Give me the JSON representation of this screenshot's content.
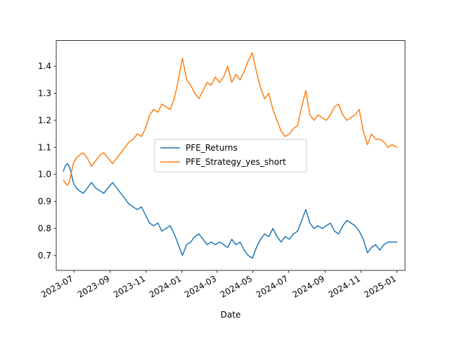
{
  "chart_data": {
    "type": "line",
    "title": "",
    "xlabel": "Date",
    "ylabel": "",
    "xlim": [
      "2023-06-01",
      "2025-01-15"
    ],
    "ylim": [
      0.645,
      1.495
    ],
    "x_ticks": [
      "2023-07",
      "2023-09",
      "2023-11",
      "2024-01",
      "2024-03",
      "2024-05",
      "2024-07",
      "2024-09",
      "2024-11",
      "2025-01"
    ],
    "y_ticks": [
      0.7,
      0.8,
      0.9,
      1.0,
      1.1,
      1.2,
      1.3,
      1.4
    ],
    "grid": false,
    "legend": "center",
    "series": [
      {
        "name": "PFE_Returns",
        "color": "#1f77b4",
        "points": [
          [
            "2023-06-13",
            1.01
          ],
          [
            "2023-06-16",
            1.03
          ],
          [
            "2023-06-20",
            1.04
          ],
          [
            "2023-06-23",
            1.03
          ],
          [
            "2023-06-27",
            1.0
          ],
          [
            "2023-06-30",
            0.97
          ],
          [
            "2023-07-05",
            0.95
          ],
          [
            "2023-07-10",
            0.94
          ],
          [
            "2023-07-17",
            0.93
          ],
          [
            "2023-07-24",
            0.95
          ],
          [
            "2023-07-31",
            0.97
          ],
          [
            "2023-08-07",
            0.95
          ],
          [
            "2023-08-14",
            0.94
          ],
          [
            "2023-08-21",
            0.93
          ],
          [
            "2023-08-28",
            0.95
          ],
          [
            "2023-09-05",
            0.97
          ],
          [
            "2023-09-12",
            0.95
          ],
          [
            "2023-09-19",
            0.93
          ],
          [
            "2023-09-26",
            0.91
          ],
          [
            "2023-10-03",
            0.89
          ],
          [
            "2023-10-10",
            0.88
          ],
          [
            "2023-10-17",
            0.87
          ],
          [
            "2023-10-24",
            0.88
          ],
          [
            "2023-10-31",
            0.85
          ],
          [
            "2023-11-07",
            0.82
          ],
          [
            "2023-11-14",
            0.81
          ],
          [
            "2023-11-21",
            0.82
          ],
          [
            "2023-11-28",
            0.79
          ],
          [
            "2023-12-05",
            0.8
          ],
          [
            "2023-12-12",
            0.81
          ],
          [
            "2023-12-19",
            0.78
          ],
          [
            "2023-12-26",
            0.74
          ],
          [
            "2024-01-02",
            0.7
          ],
          [
            "2024-01-09",
            0.74
          ],
          [
            "2024-01-16",
            0.75
          ],
          [
            "2024-01-23",
            0.77
          ],
          [
            "2024-01-30",
            0.78
          ],
          [
            "2024-02-06",
            0.76
          ],
          [
            "2024-02-13",
            0.74
          ],
          [
            "2024-02-20",
            0.75
          ],
          [
            "2024-02-27",
            0.74
          ],
          [
            "2024-03-05",
            0.75
          ],
          [
            "2024-03-12",
            0.74
          ],
          [
            "2024-03-19",
            0.73
          ],
          [
            "2024-03-26",
            0.76
          ],
          [
            "2024-04-02",
            0.74
          ],
          [
            "2024-04-09",
            0.75
          ],
          [
            "2024-04-16",
            0.72
          ],
          [
            "2024-04-23",
            0.7
          ],
          [
            "2024-04-30",
            0.69
          ],
          [
            "2024-05-07",
            0.73
          ],
          [
            "2024-05-14",
            0.76
          ],
          [
            "2024-05-21",
            0.78
          ],
          [
            "2024-05-28",
            0.77
          ],
          [
            "2024-06-04",
            0.8
          ],
          [
            "2024-06-11",
            0.77
          ],
          [
            "2024-06-18",
            0.75
          ],
          [
            "2024-06-25",
            0.77
          ],
          [
            "2024-07-02",
            0.76
          ],
          [
            "2024-07-09",
            0.78
          ],
          [
            "2024-07-16",
            0.79
          ],
          [
            "2024-07-23",
            0.83
          ],
          [
            "2024-07-30",
            0.87
          ],
          [
            "2024-08-06",
            0.82
          ],
          [
            "2024-08-13",
            0.8
          ],
          [
            "2024-08-20",
            0.81
          ],
          [
            "2024-08-27",
            0.8
          ],
          [
            "2024-09-03",
            0.81
          ],
          [
            "2024-09-10",
            0.82
          ],
          [
            "2024-09-17",
            0.79
          ],
          [
            "2024-09-24",
            0.78
          ],
          [
            "2024-10-01",
            0.81
          ],
          [
            "2024-10-08",
            0.83
          ],
          [
            "2024-10-15",
            0.82
          ],
          [
            "2024-10-22",
            0.81
          ],
          [
            "2024-10-29",
            0.79
          ],
          [
            "2024-11-05",
            0.76
          ],
          [
            "2024-11-12",
            0.71
          ],
          [
            "2024-11-19",
            0.73
          ],
          [
            "2024-11-26",
            0.74
          ],
          [
            "2024-12-03",
            0.72
          ],
          [
            "2024-12-10",
            0.74
          ],
          [
            "2024-12-17",
            0.75
          ],
          [
            "2024-12-24",
            0.75
          ],
          [
            "2025-01-02",
            0.75
          ]
        ]
      },
      {
        "name": "PFE_Strategy_yes_short",
        "color": "#ff7f0e",
        "points": [
          [
            "2023-06-13",
            0.98
          ],
          [
            "2023-06-16",
            0.97
          ],
          [
            "2023-06-20",
            0.96
          ],
          [
            "2023-06-23",
            0.97
          ],
          [
            "2023-06-27",
            1.01
          ],
          [
            "2023-06-30",
            1.04
          ],
          [
            "2023-07-05",
            1.06
          ],
          [
            "2023-07-10",
            1.07
          ],
          [
            "2023-07-17",
            1.08
          ],
          [
            "2023-07-24",
            1.06
          ],
          [
            "2023-07-31",
            1.03
          ],
          [
            "2023-08-07",
            1.05
          ],
          [
            "2023-08-14",
            1.07
          ],
          [
            "2023-08-21",
            1.08
          ],
          [
            "2023-08-28",
            1.06
          ],
          [
            "2023-09-05",
            1.04
          ],
          [
            "2023-09-12",
            1.06
          ],
          [
            "2023-09-19",
            1.08
          ],
          [
            "2023-09-26",
            1.1
          ],
          [
            "2023-10-03",
            1.12
          ],
          [
            "2023-10-10",
            1.13
          ],
          [
            "2023-10-17",
            1.15
          ],
          [
            "2023-10-24",
            1.14
          ],
          [
            "2023-10-31",
            1.17
          ],
          [
            "2023-11-07",
            1.22
          ],
          [
            "2023-11-14",
            1.24
          ],
          [
            "2023-11-21",
            1.23
          ],
          [
            "2023-11-28",
            1.26
          ],
          [
            "2023-12-05",
            1.25
          ],
          [
            "2023-12-12",
            1.24
          ],
          [
            "2023-12-19",
            1.28
          ],
          [
            "2023-12-26",
            1.35
          ],
          [
            "2024-01-02",
            1.43
          ],
          [
            "2024-01-09",
            1.35
          ],
          [
            "2024-01-16",
            1.33
          ],
          [
            "2024-01-23",
            1.3
          ],
          [
            "2024-01-30",
            1.28
          ],
          [
            "2024-02-06",
            1.31
          ],
          [
            "2024-02-13",
            1.34
          ],
          [
            "2024-02-20",
            1.33
          ],
          [
            "2024-02-27",
            1.36
          ],
          [
            "2024-03-05",
            1.34
          ],
          [
            "2024-03-12",
            1.36
          ],
          [
            "2024-03-19",
            1.4
          ],
          [
            "2024-03-26",
            1.34
          ],
          [
            "2024-04-02",
            1.37
          ],
          [
            "2024-04-09",
            1.35
          ],
          [
            "2024-04-16",
            1.38
          ],
          [
            "2024-04-23",
            1.42
          ],
          [
            "2024-04-30",
            1.45
          ],
          [
            "2024-05-07",
            1.38
          ],
          [
            "2024-05-14",
            1.32
          ],
          [
            "2024-05-21",
            1.28
          ],
          [
            "2024-05-28",
            1.3
          ],
          [
            "2024-06-04",
            1.24
          ],
          [
            "2024-06-11",
            1.2
          ],
          [
            "2024-06-18",
            1.16
          ],
          [
            "2024-06-25",
            1.14
          ],
          [
            "2024-07-02",
            1.15
          ],
          [
            "2024-07-09",
            1.17
          ],
          [
            "2024-07-16",
            1.18
          ],
          [
            "2024-07-23",
            1.25
          ],
          [
            "2024-07-30",
            1.31
          ],
          [
            "2024-08-06",
            1.22
          ],
          [
            "2024-08-13",
            1.2
          ],
          [
            "2024-08-20",
            1.22
          ],
          [
            "2024-08-27",
            1.21
          ],
          [
            "2024-09-03",
            1.2
          ],
          [
            "2024-09-10",
            1.22
          ],
          [
            "2024-09-17",
            1.25
          ],
          [
            "2024-09-24",
            1.26
          ],
          [
            "2024-10-01",
            1.22
          ],
          [
            "2024-10-08",
            1.2
          ],
          [
            "2024-10-15",
            1.21
          ],
          [
            "2024-10-22",
            1.22
          ],
          [
            "2024-10-29",
            1.24
          ],
          [
            "2024-11-05",
            1.16
          ],
          [
            "2024-11-12",
            1.11
          ],
          [
            "2024-11-19",
            1.15
          ],
          [
            "2024-11-26",
            1.13
          ],
          [
            "2024-12-03",
            1.13
          ],
          [
            "2024-12-10",
            1.12
          ],
          [
            "2024-12-17",
            1.1
          ],
          [
            "2024-12-24",
            1.11
          ],
          [
            "2025-01-02",
            1.1
          ]
        ]
      }
    ]
  }
}
